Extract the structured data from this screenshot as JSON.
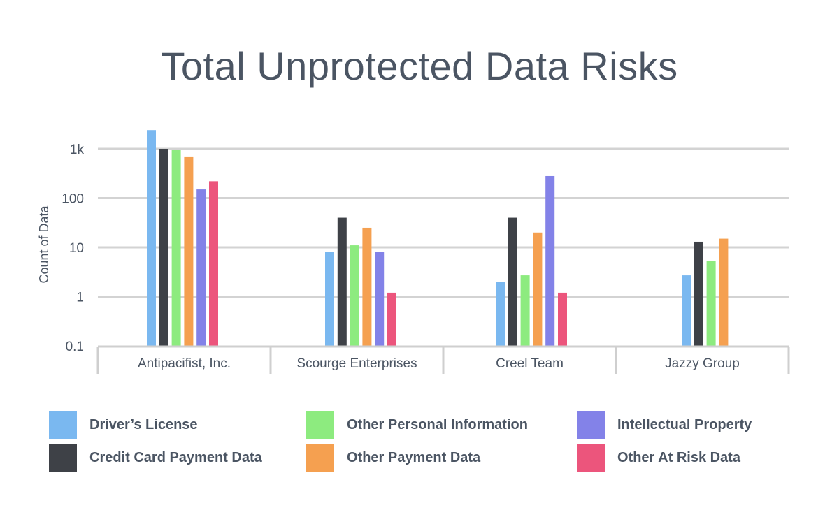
{
  "chart_data": {
    "type": "bar",
    "title": "Total Unprotected Data Risks",
    "ylabel": "Count of Data",
    "xlabel": "",
    "yscale": "log",
    "ylim": [
      0.1,
      3000
    ],
    "yticks": [
      {
        "value": 0.1,
        "label": "0.1"
      },
      {
        "value": 1,
        "label": "1"
      },
      {
        "value": 10,
        "label": "10"
      },
      {
        "value": 100,
        "label": "100"
      },
      {
        "value": 1000,
        "label": "1k"
      }
    ],
    "grid": true,
    "legend_position": "bottom",
    "categories": [
      "Antipacifist, Inc.",
      "Scourge Enterprises",
      "Creel Team",
      "Jazzy Group"
    ],
    "series": [
      {
        "name": "Driver’s License",
        "color": "#7ab8f0",
        "values": [
          2400,
          8,
          2,
          2.7
        ]
      },
      {
        "name": "Credit Card Payment Data",
        "color": "#3e4147",
        "values": [
          1000,
          40,
          40,
          13
        ]
      },
      {
        "name": "Other Personal Information",
        "color": "#8deb7f",
        "values": [
          950,
          11,
          2.7,
          5.3
        ]
      },
      {
        "name": "Other Payment Data",
        "color": "#f5a050",
        "values": [
          700,
          25,
          20,
          15
        ]
      },
      {
        "name": "Intellectual Property",
        "color": "#8382e8",
        "values": [
          150,
          8,
          280,
          null
        ]
      },
      {
        "name": "Other At Risk Data",
        "color": "#ec557c",
        "values": [
          220,
          1.2,
          1.2,
          null
        ]
      }
    ]
  }
}
